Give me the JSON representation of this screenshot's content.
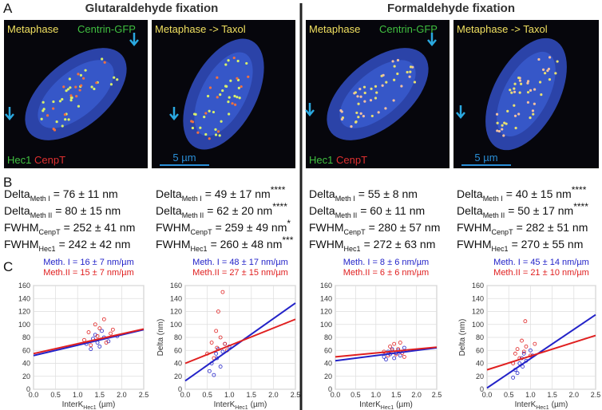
{
  "header": {
    "panel_a": "A",
    "left_title": "Glutaraldehyde fixation",
    "right_title": "Formaldehyde fixation"
  },
  "images": [
    {
      "top_left": "Metaphase",
      "top_right": "Centrin-GFP",
      "bottom_left": "Hec1",
      "bottom_right": "CenpT"
    },
    {
      "top_left": "Metaphase -> Taxol",
      "scale_bar": "5 µm"
    },
    {
      "top_left": "Metaphase",
      "top_right": "Centrin-GFP",
      "bottom_left": "Hec1",
      "bottom_right": "CenpT"
    },
    {
      "top_left": "Metaphase -> Taxol",
      "scale_bar": "5 µm"
    }
  ],
  "stats": {
    "panel_b": "B",
    "columns": [
      {
        "rows": [
          {
            "label": "Delta",
            "sub": "Meth I",
            "value": "= 76 ± 11 nm"
          },
          {
            "label": "Delta",
            "sub": "Meth II",
            "value": "= 80 ± 15 nm"
          },
          {
            "label": "FWHM",
            "sub": "CenpT",
            "value": "= 252 ± 41 nm"
          },
          {
            "label": "FWHM",
            "sub": "Hec1",
            "value": "= 242 ± 42 nm"
          }
        ]
      },
      {
        "rows": [
          {
            "label": "Delta",
            "sub": "Meth I",
            "value": "= 49 ± 17 nm",
            "sig": "****"
          },
          {
            "label": "Delta",
            "sub": "Meth II",
            "value": "= 62 ± 20 nm",
            "sig": "****"
          },
          {
            "label": "FWHM",
            "sub": "CenpT",
            "value": "= 259 ± 49 nm",
            "sig": "*"
          },
          {
            "label": "FWHM",
            "sub": "Hec1",
            "value": "= 260 ± 48 nm",
            "sig": "***"
          }
        ]
      },
      {
        "rows": [
          {
            "label": "Delta",
            "sub": "Meth I",
            "value": "= 55 ± 8 nm"
          },
          {
            "label": "Delta",
            "sub": "Meth II",
            "value": "= 60 ± 11 nm"
          },
          {
            "label": "FWHM",
            "sub": "CenpT",
            "value": "= 280 ± 57 nm"
          },
          {
            "label": "FWHM",
            "sub": "Hec1",
            "value": "= 272 ± 63 nm"
          }
        ]
      },
      {
        "rows": [
          {
            "label": "Delta",
            "sub": "Meth I",
            "value": "= 40 ± 15 nm",
            "sig": "****"
          },
          {
            "label": "Delta",
            "sub": "Meth II",
            "value": "= 50 ± 17 nm",
            "sig": "****"
          },
          {
            "label": "FWHM",
            "sub": "CenpT",
            "value": "= 282 ± 51 nm"
          },
          {
            "label": "FWHM",
            "sub": "Hec1",
            "value": "= 270 ± 55 nm"
          }
        ]
      }
    ]
  },
  "panel_c": "C",
  "chart_data": [
    {
      "type": "scatter",
      "xlabel": "InterK",
      "xlabel_sub": "Hec1",
      "xlabel_unit": "(µm)",
      "xlim": [
        0,
        2.5
      ],
      "ylim": [
        0,
        160
      ],
      "grid": true,
      "xticks": [
        {
          "value": 0,
          "label": "0.0"
        },
        0.5,
        {
          "value": 1,
          "label": "1.0"
        },
        1.5,
        {
          "value": 2,
          "label": "2.0"
        },
        2.5
      ],
      "yticks": [
        0,
        20,
        40,
        60,
        80,
        100,
        120,
        140,
        160
      ],
      "series": [
        {
          "name": "Meth. I = 16 ± 7 nm/µm",
          "color": "#2323c8",
          "x": [
            1.2,
            1.3,
            1.35,
            1.4,
            1.45,
            1.5,
            1.55,
            1.6,
            1.7,
            1.9
          ],
          "values": [
            70,
            62,
            78,
            84,
            72,
            66,
            90,
            80,
            74,
            82
          ],
          "fit": {
            "x": [
              0,
              2.5
            ],
            "values": [
              52,
              92
            ]
          }
        },
        {
          "name": "Meth.II = 15 ± 7 nm/µm",
          "color": "#e02020",
          "x": [
            1.15,
            1.25,
            1.3,
            1.4,
            1.45,
            1.5,
            1.6,
            1.65,
            1.75,
            1.8
          ],
          "values": [
            76,
            88,
            68,
            100,
            82,
            94,
            108,
            72,
            86,
            92
          ],
          "fit": {
            "x": [
              0,
              2.5
            ],
            "values": [
              55,
              93
            ]
          }
        }
      ]
    },
    {
      "type": "scatter",
      "ylabel": "Delta (nm)",
      "xlabel": "InterK",
      "xlabel_sub": "Hec1",
      "xlabel_unit": "(µm)",
      "xlim": [
        0,
        2.5
      ],
      "ylim": [
        0,
        160
      ],
      "grid": true,
      "xticks": [
        {
          "value": 0,
          "label": "0.0"
        },
        0.5,
        {
          "value": 1,
          "label": "1.0"
        },
        1.5,
        {
          "value": 2,
          "label": "2.0"
        },
        2.5
      ],
      "yticks": [
        0,
        20,
        40,
        60,
        80,
        100,
        120,
        140,
        160
      ],
      "series": [
        {
          "name": "Meth. I = 48 ± 17 nm/µm",
          "color": "#2323c8",
          "x": [
            0.55,
            0.6,
            0.65,
            0.7,
            0.72,
            0.75,
            0.8,
            0.85,
            0.9,
            1.0
          ],
          "values": [
            28,
            40,
            22,
            55,
            48,
            62,
            35,
            58,
            70,
            66
          ],
          "fit": {
            "x": [
              0,
              2.5
            ],
            "values": [
              13,
              133
            ]
          }
        },
        {
          "name": "Meth.II = 27 ± 15 nm/µm",
          "color": "#e02020",
          "x": [
            0.5,
            0.6,
            0.65,
            0.7,
            0.72,
            0.75,
            0.8,
            0.85,
            0.9,
            0.95
          ],
          "values": [
            55,
            72,
            48,
            90,
            64,
            120,
            80,
            150,
            70,
            60
          ],
          "fit": {
            "x": [
              0,
              2.5
            ],
            "values": [
              40,
              108
            ]
          }
        }
      ]
    },
    {
      "type": "scatter",
      "xlabel": "InterK",
      "xlabel_sub": "Hec1",
      "xlabel_unit": "(µm)",
      "xlim": [
        0,
        2.5
      ],
      "ylim": [
        0,
        160
      ],
      "grid": true,
      "xticks": [
        {
          "value": 0,
          "label": "0.0"
        },
        0.5,
        {
          "value": 1,
          "label": "1.0"
        },
        1.5,
        {
          "value": 2,
          "label": "2.0"
        },
        2.5
      ],
      "yticks": [
        0,
        20,
        40,
        60,
        80,
        100,
        120,
        140,
        160
      ],
      "series": [
        {
          "name": "Meth. I = 8 ± 6 nm/µm",
          "color": "#2323c8",
          "x": [
            1.2,
            1.25,
            1.3,
            1.35,
            1.4,
            1.45,
            1.5,
            1.55,
            1.6,
            1.7
          ],
          "values": [
            50,
            46,
            58,
            54,
            62,
            48,
            56,
            60,
            52,
            64
          ],
          "fit": {
            "x": [
              0,
              2.5
            ],
            "values": [
              44,
              64
            ]
          }
        },
        {
          "name": "Meth.II = 6 ± 6 nm/µm",
          "color": "#e02020",
          "x": [
            1.2,
            1.3,
            1.35,
            1.4,
            1.45,
            1.5,
            1.55,
            1.6,
            1.65,
            1.7
          ],
          "values": [
            58,
            52,
            66,
            60,
            70,
            54,
            62,
            72,
            56,
            50
          ],
          "fit": {
            "x": [
              0,
              2.5
            ],
            "values": [
              50,
              65
            ]
          }
        }
      ]
    },
    {
      "type": "scatter",
      "ylabel": "Delta (nm)",
      "xlabel": "InterK",
      "xlabel_sub": "Hec1",
      "xlabel_unit": "(µm)",
      "xlim": [
        0,
        2.5
      ],
      "ylim": [
        0,
        160
      ],
      "grid": true,
      "xticks": [
        {
          "value": 0,
          "label": "0.0"
        },
        0.5,
        {
          "value": 1,
          "label": "1.0"
        },
        1.5,
        {
          "value": 2,
          "label": "2.0"
        },
        2.5
      ],
      "yticks": [
        0,
        20,
        40,
        60,
        80,
        100,
        120,
        140,
        160
      ],
      "series": [
        {
          "name": "Meth. I = 45 ± 14 nm/µm",
          "color": "#2323c8",
          "x": [
            0.6,
            0.65,
            0.7,
            0.75,
            0.8,
            0.82,
            0.85,
            0.9,
            1.0,
            1.05
          ],
          "values": [
            18,
            30,
            25,
            40,
            48,
            35,
            55,
            44,
            60,
            52
          ],
          "fit": {
            "x": [
              0,
              2.5
            ],
            "values": [
              2,
              115
            ]
          }
        },
        {
          "name": "Meth.II = 21 ± 10 nm/µm",
          "color": "#e02020",
          "x": [
            0.6,
            0.65,
            0.7,
            0.75,
            0.8,
            0.85,
            0.88,
            0.9,
            1.0,
            1.1
          ],
          "values": [
            40,
            55,
            62,
            48,
            75,
            58,
            105,
            66,
            52,
            70
          ],
          "fit": {
            "x": [
              0,
              2.5
            ],
            "values": [
              30,
              83
            ]
          }
        }
      ]
    }
  ]
}
